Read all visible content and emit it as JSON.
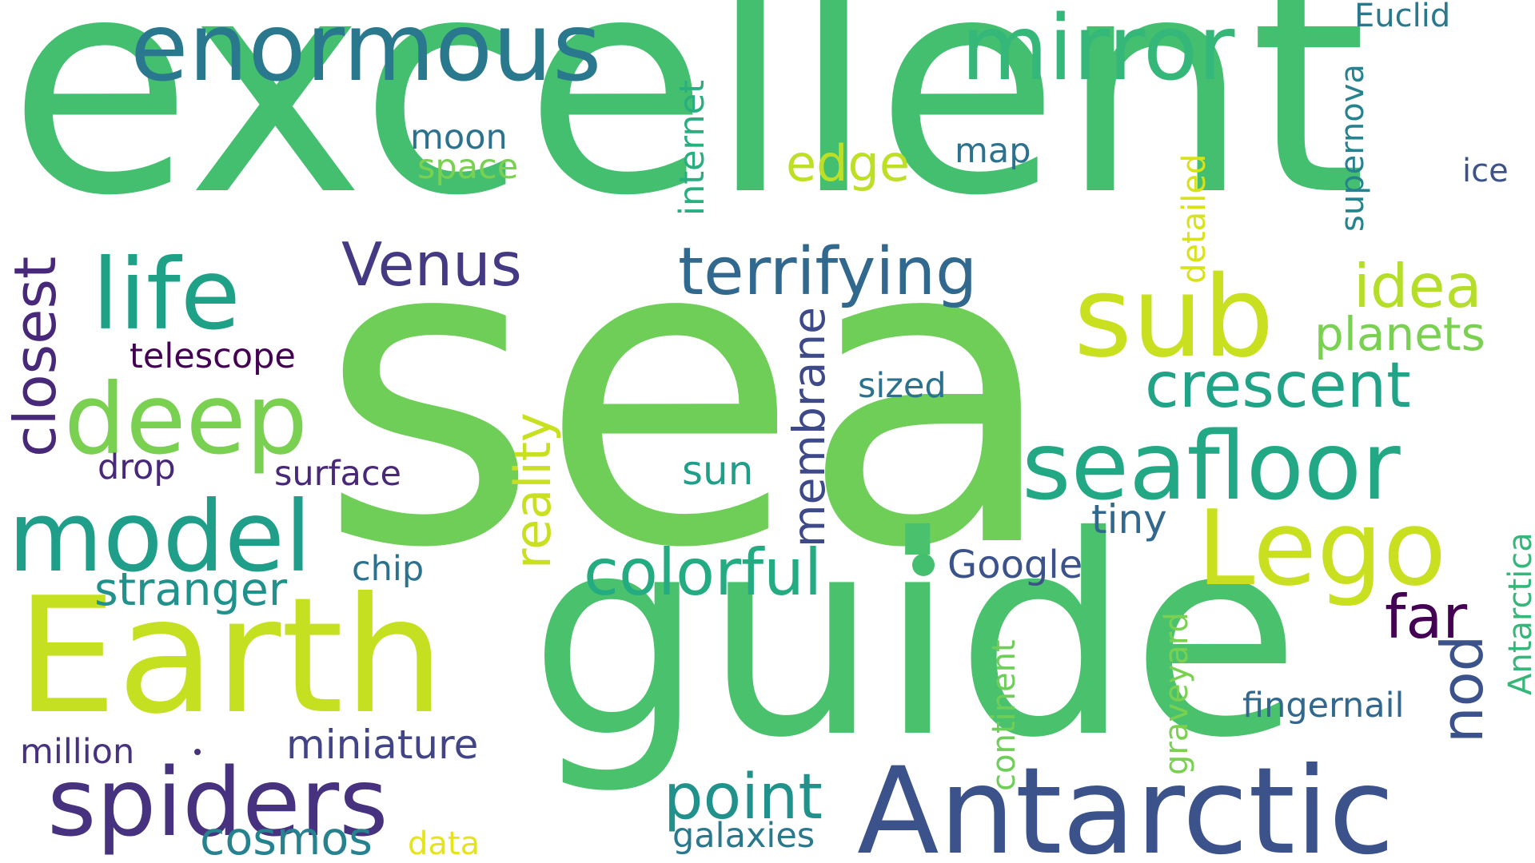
{
  "words": [
    {
      "key": "sea",
      "text": "sea",
      "color": "#6ece58"
    },
    {
      "key": "excellent",
      "text": "excellent",
      "color": "#44bf70"
    },
    {
      "key": "guide",
      "text": "guide",
      "color": "#4ac16d"
    },
    {
      "key": "earth",
      "text": "Earth",
      "color": "#c5e021"
    },
    {
      "key": "antarctic",
      "text": "Antarctic",
      "color": "#3b528b"
    },
    {
      "key": "enormous",
      "text": "enormous",
      "color": "#2a788e"
    },
    {
      "key": "mirror",
      "text": "mirror",
      "color": "#35b779"
    },
    {
      "key": "seafloor",
      "text": "seafloor",
      "color": "#22a884"
    },
    {
      "key": "life",
      "text": "life",
      "color": "#1fa188"
    },
    {
      "key": "deep",
      "text": "deep",
      "color": "#7ad151"
    },
    {
      "key": "model",
      "text": "model",
      "color": "#1f9e89"
    },
    {
      "key": "spiders",
      "text": "spiders",
      "color": "#46327e"
    },
    {
      "key": "sub",
      "text": "sub",
      "color": "#c8e020"
    },
    {
      "key": "lego",
      "text": "Lego",
      "color": "#c8e020"
    },
    {
      "key": "terrifying",
      "text": "terrifying",
      "color": "#31688e"
    },
    {
      "key": "venus",
      "text": "Venus",
      "color": "#443983"
    },
    {
      "key": "crescent",
      "text": "crescent",
      "color": "#20a386"
    },
    {
      "key": "colorful",
      "text": "colorful",
      "color": "#25ab82"
    },
    {
      "key": "idea",
      "text": "idea",
      "color": "#b5de2b"
    },
    {
      "key": "planets",
      "text": "planets",
      "color": "#7ad151"
    },
    {
      "key": "point",
      "text": "point",
      "color": "#21918c"
    },
    {
      "key": "far",
      "text": "far",
      "color": "#440154"
    },
    {
      "key": "stranger",
      "text": "stranger",
      "color": "#21918c"
    },
    {
      "key": "cosmos",
      "text": "cosmos",
      "color": "#26828e"
    },
    {
      "key": "miniature",
      "text": "miniature",
      "color": "#414487"
    },
    {
      "key": "million",
      "text": "million",
      "color": "#46327e"
    },
    {
      "key": "data",
      "text": "data",
      "color": "#e5e419"
    },
    {
      "key": "galaxies",
      "text": "galaxies",
      "color": "#2a788e"
    },
    {
      "key": "telescope",
      "text": "telescope",
      "color": "#440154"
    },
    {
      "key": "surface",
      "text": "surface",
      "color": "#482878"
    },
    {
      "key": "drop",
      "text": "drop",
      "color": "#482878"
    },
    {
      "key": "chip",
      "text": "chip",
      "color": "#2c728e"
    },
    {
      "key": "moon",
      "text": "moon",
      "color": "#2c728e"
    },
    {
      "key": "space",
      "text": "space",
      "color": "#7ad151"
    },
    {
      "key": "edge",
      "text": "edge",
      "color": "#bddf26"
    },
    {
      "key": "map",
      "text": "map",
      "color": "#2c728e"
    },
    {
      "key": "sized",
      "text": "sized",
      "color": "#2c728e"
    },
    {
      "key": "sun",
      "text": "sun",
      "color": "#1f9e89"
    },
    {
      "key": "tiny",
      "text": "tiny",
      "color": "#31688e"
    },
    {
      "key": "google",
      "text": "Google",
      "color": "#3b528b"
    },
    {
      "key": "fingernail",
      "text": "fingernail",
      "color": "#31688e"
    },
    {
      "key": "euclid",
      "text": "Euclid",
      "color": "#2a788e"
    },
    {
      "key": "ice",
      "text": "ice",
      "color": "#3b528b"
    },
    {
      "key": "closest",
      "text": "closest",
      "color": "#482878"
    },
    {
      "key": "reality",
      "text": "reality",
      "color": "#c8e020"
    },
    {
      "key": "membrane",
      "text": "membrane",
      "color": "#3e4989"
    },
    {
      "key": "internet",
      "text": "internet",
      "color": "#29af7f"
    },
    {
      "key": "detailed",
      "text": "detailed",
      "color": "#d8e219"
    },
    {
      "key": "supernova",
      "text": "supernova",
      "color": "#26828e"
    },
    {
      "key": "antarctica",
      "text": "Antarctica",
      "color": "#35b779"
    },
    {
      "key": "nod",
      "text": "nod",
      "color": "#3b528b"
    },
    {
      "key": "continent",
      "text": "continent",
      "color": "#6ece58"
    },
    {
      "key": "graveyard",
      "text": "graveyard",
      "color": "#7ad151"
    }
  ]
}
